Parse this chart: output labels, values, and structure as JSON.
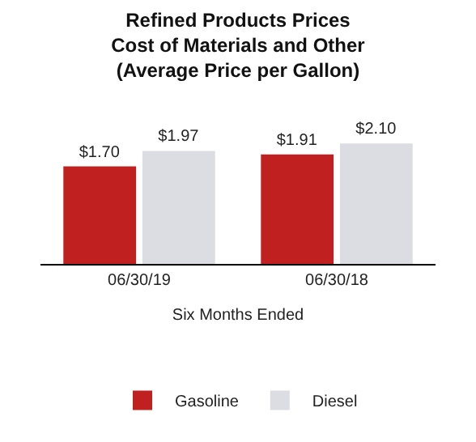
{
  "chart_data": {
    "type": "bar",
    "title": "Refined Products Prices\nCost of Materials and Other\n(Average Price per Gallon)",
    "xlabel": "Six Months Ended",
    "categories": [
      "06/30/19",
      "06/30/18"
    ],
    "series": [
      {
        "name": "Gasoline",
        "color": "#c0201f",
        "values": [
          1.7,
          1.91
        ],
        "value_labels": [
          "$1.70",
          "$1.91"
        ]
      },
      {
        "name": "Diesel",
        "color": "#dcdde2",
        "values": [
          1.97,
          2.1
        ],
        "value_labels": [
          "$1.97",
          "$2.10"
        ]
      }
    ],
    "legend": "bottom",
    "grid": false
  }
}
